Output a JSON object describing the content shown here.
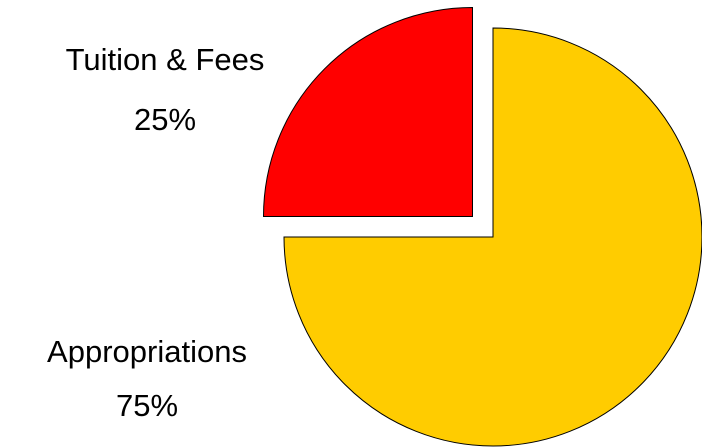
{
  "chart_data": {
    "type": "pie",
    "categories": [
      "Tuition & Fees",
      "Appropriations"
    ],
    "values": [
      25,
      75
    ],
    "value_labels": [
      "25%",
      "75%"
    ],
    "colors": [
      "#ff0000",
      "#ffcc00"
    ]
  }
}
